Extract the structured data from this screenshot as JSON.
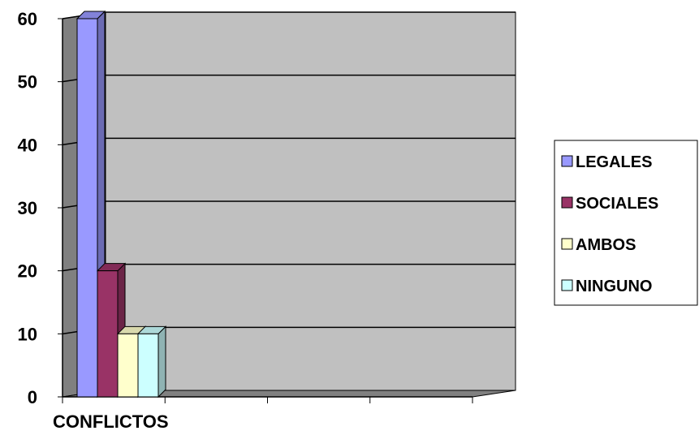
{
  "chart_data": {
    "type": "bar",
    "categories": [
      "CONFLICTOS"
    ],
    "series": [
      {
        "name": "LEGALES",
        "values": [
          60
        ],
        "color": "#9999ff"
      },
      {
        "name": "SOCIALES",
        "values": [
          20
        ],
        "color": "#993366"
      },
      {
        "name": "AMBOS",
        "values": [
          10
        ],
        "color": "#ffffcc"
      },
      {
        "name": "NINGUNO",
        "values": [
          10
        ],
        "color": "#ccffff"
      }
    ],
    "yticks": [
      "0",
      "10",
      "20",
      "30",
      "40",
      "50",
      "60"
    ],
    "ylim": [
      0,
      60
    ],
    "grid": true,
    "legend_position": "right",
    "style": "3d",
    "colors": {
      "plot_back": "#c0c0c0",
      "plot_side": "#808080",
      "floor": "#808080",
      "gridline": "#000000"
    }
  }
}
